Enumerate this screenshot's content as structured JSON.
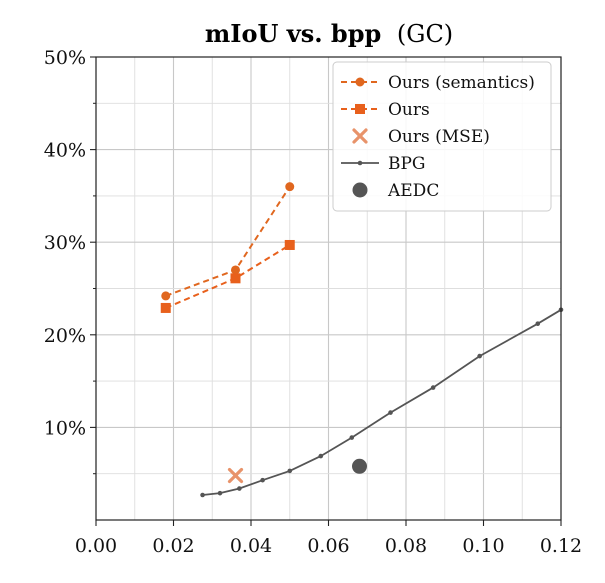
{
  "chart_data": {
    "type": "line",
    "title": "mIoU vs. bpp",
    "subtitle": "(GC)",
    "xlabel": "",
    "ylabel": "",
    "xlim": [
      0.0,
      0.12
    ],
    "ylim": [
      0,
      50
    ],
    "x_ticks": [
      {
        "value": 0.0,
        "label": "0.00"
      },
      {
        "value": 0.02,
        "label": "0.02"
      },
      {
        "value": 0.04,
        "label": "0.04"
      },
      {
        "value": 0.06,
        "label": "0.06"
      },
      {
        "value": 0.08,
        "label": "0.08"
      },
      {
        "value": 0.1,
        "label": "0.10"
      },
      {
        "value": 0.12,
        "label": "0.12"
      }
    ],
    "y_ticks": [
      {
        "value": 10,
        "label": "10%"
      },
      {
        "value": 20,
        "label": "20%"
      },
      {
        "value": 30,
        "label": "30%"
      },
      {
        "value": 40,
        "label": "40%"
      },
      {
        "value": 50,
        "label": "50%"
      }
    ],
    "y_minor_grid": [
      5,
      15,
      25,
      35,
      45
    ],
    "x_minor_grid": [
      0.01,
      0.03,
      0.05,
      0.07,
      0.09,
      0.11
    ],
    "grid": true,
    "legend_position": "top-right",
    "series": [
      {
        "name": "Ours (semantics)",
        "style": "dashed-line-circle",
        "color": "#e0671f",
        "points": [
          [
            0.018,
            24.2
          ],
          [
            0.036,
            27.0
          ],
          [
            0.05,
            36.0
          ]
        ]
      },
      {
        "name": "Ours",
        "style": "dashed-line-square",
        "color": "#e8601c",
        "points": [
          [
            0.018,
            22.9
          ],
          [
            0.036,
            26.1
          ],
          [
            0.05,
            29.7
          ]
        ]
      },
      {
        "name": "Ours (MSE)",
        "style": "x-marker",
        "color": "#e8936a",
        "points": [
          [
            0.036,
            4.8
          ]
        ]
      },
      {
        "name": "BPG",
        "style": "solid-line-dot",
        "color": "#555555",
        "points": [
          [
            0.0275,
            2.7
          ],
          [
            0.032,
            2.9
          ],
          [
            0.037,
            3.4
          ],
          [
            0.043,
            4.3
          ],
          [
            0.05,
            5.3
          ],
          [
            0.058,
            6.9
          ],
          [
            0.066,
            8.9
          ],
          [
            0.076,
            11.6
          ],
          [
            0.087,
            14.3
          ],
          [
            0.099,
            17.7
          ],
          [
            0.114,
            21.2
          ],
          [
            0.12,
            22.7
          ]
        ]
      },
      {
        "name": "AEDC",
        "style": "large-circle",
        "color": "#555555",
        "points": [
          [
            0.068,
            5.8
          ]
        ]
      }
    ]
  }
}
